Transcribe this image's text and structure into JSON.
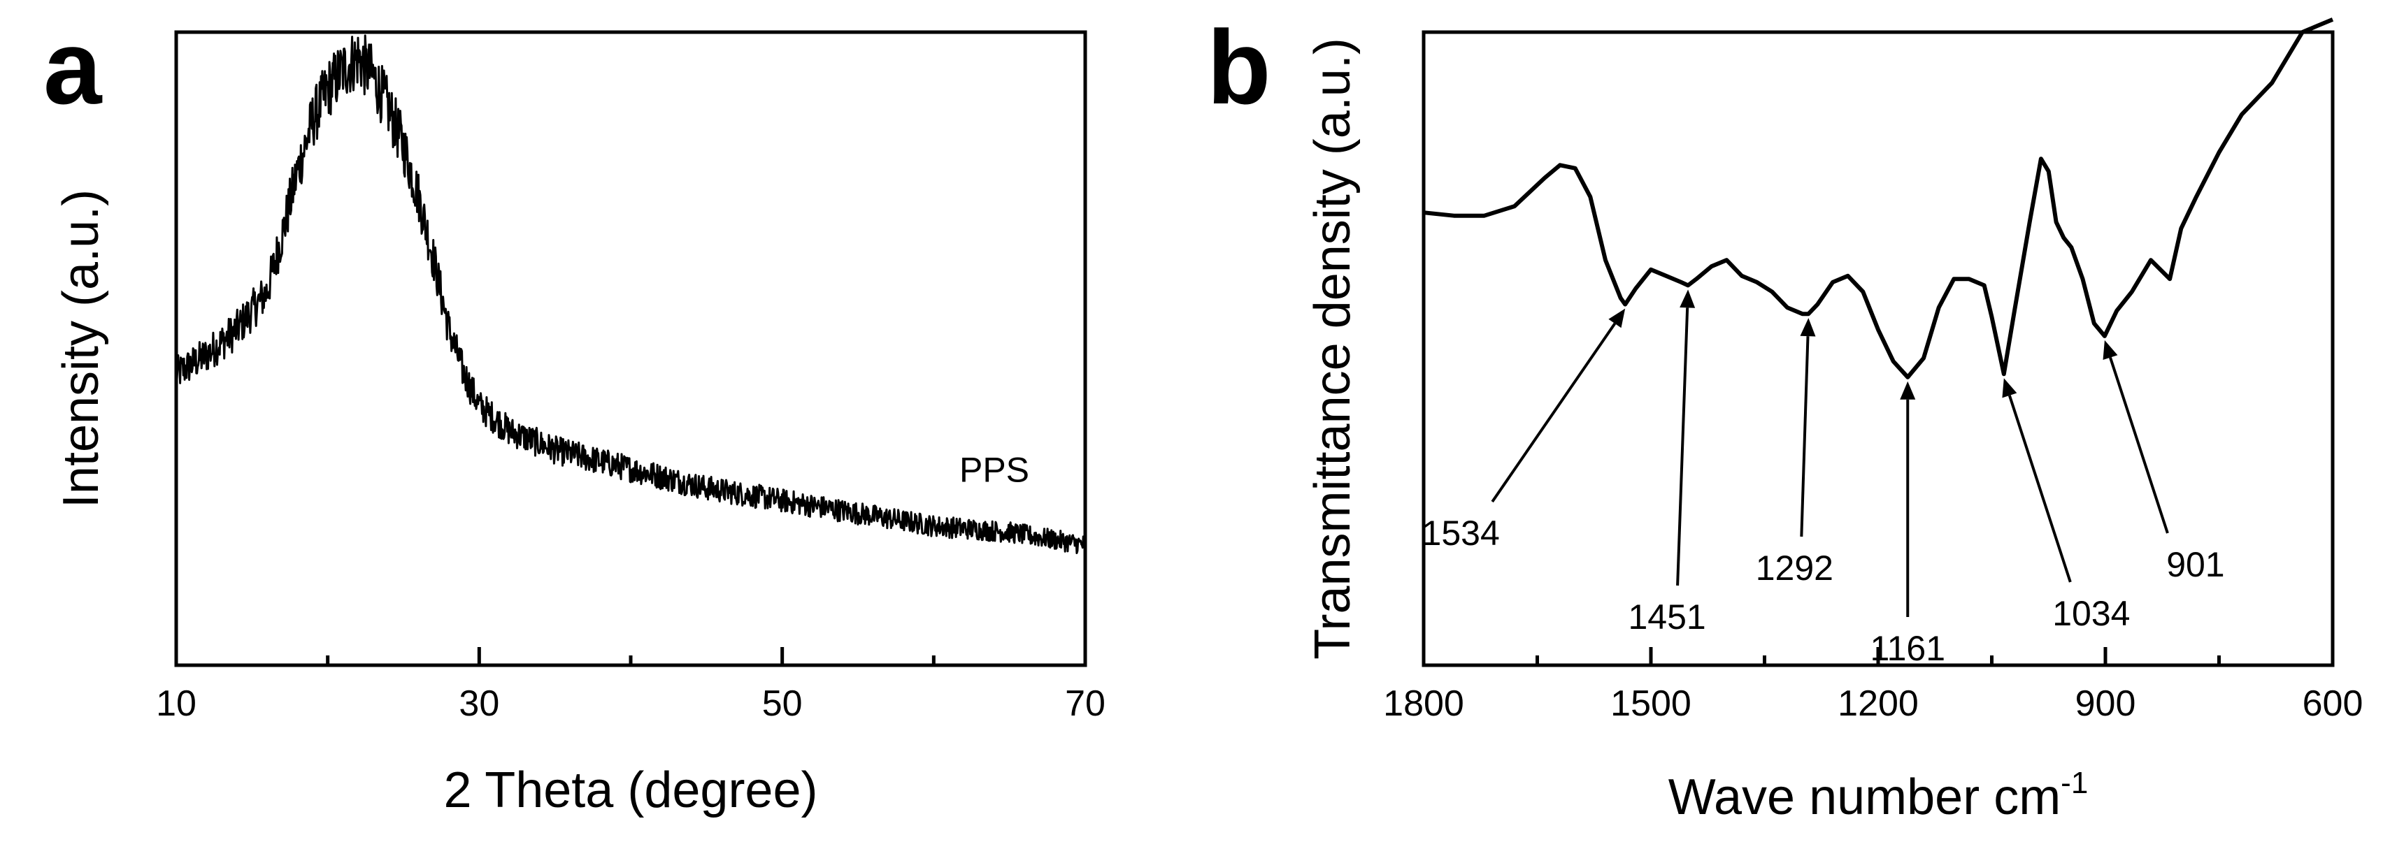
{
  "chart_data": [
    {
      "panel": "a",
      "type": "line",
      "xlabel": "2 Theta (degree)",
      "ylabel": "Intensity (a.u.)",
      "xlim": [
        10,
        70
      ],
      "ylim": [
        0,
        100
      ],
      "xticks": [
        10,
        30,
        50,
        70
      ],
      "yticks_shown": false,
      "grid": false,
      "series": [
        {
          "name": "PPS",
          "noisy": true,
          "x": [
            10,
            12,
            14,
            16,
            17,
            18,
            19,
            20,
            21,
            22,
            23,
            24,
            25,
            26,
            27,
            28,
            29,
            30,
            32,
            35,
            40,
            45,
            50,
            55,
            60,
            65,
            70
          ],
          "y": [
            46,
            49,
            53,
            59,
            68,
            78,
            86,
            91,
            94,
            96,
            93,
            88,
            82,
            74,
            64,
            53,
            46,
            41,
            37,
            34,
            31,
            28,
            26,
            24,
            22,
            21,
            19
          ]
        }
      ],
      "annotations": [
        {
          "text": "PPS",
          "x": 64,
          "y": 29
        }
      ]
    },
    {
      "panel": "b",
      "type": "line",
      "xlabel": "Wave number cm",
      "xlabel_superscript": "-1",
      "ylabel": "Transmittance density (a.u.)",
      "xlim": [
        1800,
        600
      ],
      "x_reversed": true,
      "ylim": [
        0,
        100
      ],
      "xticks": [
        1800,
        1500,
        1200,
        900,
        600
      ],
      "yticks_shown": false,
      "grid": false,
      "series": [
        {
          "name": "",
          "noisy": false,
          "x": [
            1800,
            1760,
            1720,
            1680,
            1640,
            1620,
            1600,
            1580,
            1560,
            1540,
            1534,
            1520,
            1500,
            1480,
            1460,
            1451,
            1440,
            1420,
            1400,
            1380,
            1360,
            1340,
            1320,
            1300,
            1292,
            1280,
            1260,
            1240,
            1220,
            1200,
            1180,
            1161,
            1140,
            1120,
            1100,
            1080,
            1060,
            1050,
            1034,
            1020,
            1000,
            985,
            975,
            965,
            955,
            945,
            930,
            915,
            901,
            885,
            865,
            840,
            815,
            800,
            780,
            750,
            720,
            680,
            640,
            620,
            600
          ],
          "y": [
            71.5,
            71,
            71,
            72.5,
            77,
            79,
            78.5,
            74,
            64,
            58,
            57,
            59.5,
            62.5,
            61.5,
            60.5,
            60,
            61,
            63,
            64,
            61.5,
            60.5,
            59,
            56.5,
            55.5,
            55.5,
            57,
            60.5,
            61.5,
            59,
            53,
            48,
            45.5,
            48.5,
            56.5,
            61,
            61,
            60,
            55,
            46,
            56,
            70,
            80,
            78,
            70,
            67.5,
            66,
            61,
            54,
            52,
            56,
            59,
            64,
            61,
            69,
            74,
            81,
            87,
            92,
            100,
            101,
            102
          ]
        }
      ],
      "annotations": [
        {
          "text": "1534",
          "x": 1534
        },
        {
          "text": "1451",
          "x": 1451
        },
        {
          "text": "1292",
          "x": 1292
        },
        {
          "text": "1161",
          "x": 1161
        },
        {
          "text": "1034",
          "x": 1034
        },
        {
          "text": "901",
          "x": 901
        }
      ]
    }
  ]
}
